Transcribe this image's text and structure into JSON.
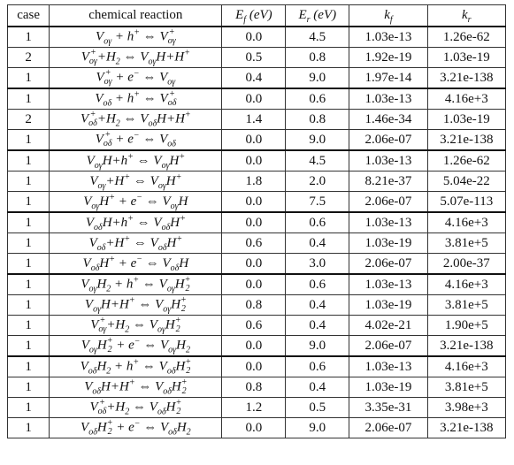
{
  "table": {
    "header": [
      "case",
      "chemical reaction",
      "E_{f} (eV)",
      "E_{r} (eV)",
      "k_{f}",
      "k_{r}"
    ],
    "groups": [
      [
        [
          "1",
          "V_{oγ} + h^{+} ⇔ V_{oγ}^{+}",
          "0.0",
          "4.5",
          "1.03e-13",
          "1.26e-62"
        ],
        [
          "2",
          "V_{oγ}^{+}+H_{2} ⇔ V_{oγ}H+H^{+}",
          "0.5",
          "0.8",
          "1.92e-19",
          "1.03e-19"
        ],
        [
          "1",
          "V_{oγ}^{+} + e^{−} ⇔ V_{oγ}",
          "0.4",
          "9.0",
          "1.97e-14",
          "3.21e-138"
        ]
      ],
      [
        [
          "1",
          "V_{oδ} + h^{+} ⇔ V_{oδ}^{+}",
          "0.0",
          "0.6",
          "1.03e-13",
          "4.16e+3"
        ],
        [
          "2",
          "V_{oδ}^{+}+H_{2} ⇔ V_{oδ}H+H^{+}",
          "1.4",
          "0.8",
          "1.46e-34",
          "1.03e-19"
        ],
        [
          "1",
          "V_{oδ}^{+} + e^{−} ⇔ V_{oδ}",
          "0.0",
          "9.0",
          "2.06e-07",
          "3.21e-138"
        ]
      ],
      [
        [
          "1",
          "V_{oγ}H+h^{+} ⇔ V_{oγ}H^{+}",
          "0.0",
          "4.5",
          "1.03e-13",
          "1.26e-62"
        ],
        [
          "1",
          "V_{oγ}+H^{+} ⇔ V_{oγ}H^{+}",
          "1.8",
          "2.0",
          "8.21e-37",
          "5.04e-22"
        ],
        [
          "1",
          "V_{oγ}H^{+} + e^{−} ⇔ V_{oγ}H",
          "0.0",
          "7.5",
          "2.06e-07",
          "5.07e-113"
        ]
      ],
      [
        [
          "1",
          "V_{oδ}H+h^{+} ⇔ V_{oδ}H^{+}",
          "0.0",
          "0.6",
          "1.03e-13",
          "4.16e+3"
        ],
        [
          "1",
          "V_{oδ}+H^{+} ⇔ V_{oδ}H^{+}",
          "0.6",
          "0.4",
          "1.03e-19",
          "3.81e+5"
        ],
        [
          "1",
          "V_{oδ}H^{+} + e^{−} ⇔ V_{oδ}H",
          "0.0",
          "3.0",
          "2.06e-07",
          "2.00e-37"
        ]
      ],
      [
        [
          "1",
          "V_{oγ}H_{2} + h^{+} ⇔ V_{oγ}H_{2}^{+}",
          "0.0",
          "0.6",
          "1.03e-13",
          "4.16e+3"
        ],
        [
          "1",
          "V_{oγ}H+H^{+} ⇔ V_{oγ}H_{2}^{+}",
          "0.8",
          "0.4",
          "1.03e-19",
          "3.81e+5"
        ],
        [
          "1",
          "V_{oγ}^{+}+H_{2} ⇔ V_{oγ}H_{2}^{+}",
          "0.6",
          "0.4",
          "4.02e-21",
          "1.90e+5"
        ],
        [
          "1",
          "V_{oγ}H_{2}^{+} + e^{−} ⇔ V_{oγ}H_{2}",
          "0.0",
          "9.0",
          "2.06e-07",
          "3.21e-138"
        ]
      ],
      [
        [
          "1",
          "V_{oδ}H_{2} + h^{+} ⇔ V_{oδ}H_{2}^{+}",
          "0.0",
          "0.6",
          "1.03e-13",
          "4.16e+3"
        ],
        [
          "1",
          "V_{oδ}H+H^{+} ⇔ V_{oδ}H_{2}^{+}",
          "0.8",
          "0.4",
          "1.03e-19",
          "3.81e+5"
        ],
        [
          "1",
          "V_{oδ}^{+}+H_{2} ⇔ V_{oδ}H_{2}^{+}",
          "1.2",
          "0.5",
          "3.35e-31",
          "3.98e+3"
        ],
        [
          "1",
          "V_{oδ}H_{2}^{+} + e^{−} ⇔ V_{oδ}H_{2}",
          "0.0",
          "9.0",
          "2.06e-07",
          "3.21e-138"
        ]
      ]
    ]
  }
}
